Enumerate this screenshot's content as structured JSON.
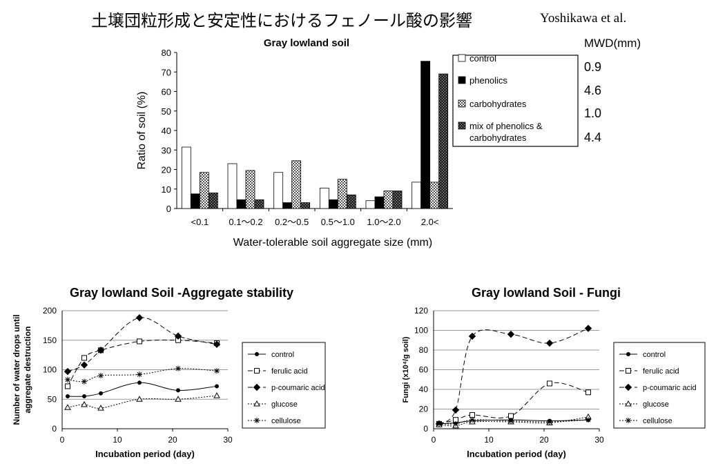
{
  "page": {
    "title": "土壌団粒形成と安定性におけるフェノール酸の影響",
    "author": "Yoshikawa et al."
  },
  "chart_data": [
    {
      "type": "bar",
      "title": "Gray lowland soil",
      "xlabel": "Water-tolerable  soil aggregate size (mm)",
      "ylabel": "Ratio of soil (%)",
      "ylim": [
        0,
        80
      ],
      "yticks": [
        0,
        10,
        20,
        30,
        40,
        50,
        60,
        70,
        80
      ],
      "categories": [
        "<0.1",
        "0.1～0.2",
        "0.2～0.5",
        "0.5～1.0",
        "1.0～2.0",
        "2.0<"
      ],
      "series": [
        {
          "name": "control",
          "values": [
            31.5,
            23,
            18.5,
            10.5,
            4,
            13.5
          ],
          "fill": "#ffffff"
        },
        {
          "name": "phenolics",
          "values": [
            7.5,
            4.5,
            3,
            4.5,
            6,
            75.5
          ],
          "fill": "#000000"
        },
        {
          "name": "carbohydrates",
          "values": [
            18.5,
            19.5,
            24.5,
            15,
            9,
            13.5
          ],
          "fill": "url(#pat-check)"
        },
        {
          "name": "mix of phenolics & carbohydrates",
          "values": [
            8,
            4.5,
            3,
            7,
            9,
            69
          ],
          "fill": "url(#pat-dark)"
        }
      ],
      "legend": "right",
      "mwd": {
        "header": "MWD(mm)",
        "values": [
          "0.9",
          "4.6",
          "1.0",
          "4.4"
        ]
      }
    },
    {
      "type": "line",
      "title": "Gray lowland Soil -Aggregate stability",
      "xlabel": "Incubation period (day)",
      "ylabel": "Number of water drops until aggregate destruction",
      "xlim": [
        0,
        30
      ],
      "ylim": [
        0,
        200
      ],
      "xticks": [
        0,
        10,
        20,
        30
      ],
      "yticks": [
        0,
        50,
        100,
        150,
        200
      ],
      "x": [
        1,
        4,
        7,
        14,
        21,
        28
      ],
      "series": [
        {
          "name": "control",
          "values": [
            55,
            55,
            60,
            78,
            65,
            72
          ],
          "marker": "dot",
          "dash": "solid"
        },
        {
          "name": "ferulic acid",
          "values": [
            72,
            120,
            133,
            148,
            150,
            145
          ],
          "marker": "square",
          "dash": "dash"
        },
        {
          "name": "p-coumaric acid",
          "values": [
            97,
            108,
            133,
            188,
            157,
            143
          ],
          "marker": "diamond",
          "dash": "dash"
        },
        {
          "name": "glucose",
          "values": [
            36,
            41,
            35,
            50,
            50,
            56
          ],
          "marker": "triangle",
          "dash": "dot"
        },
        {
          "name": "cellulose",
          "values": [
            83,
            80,
            90,
            92,
            102,
            98
          ],
          "marker": "star",
          "dash": "dot"
        }
      ],
      "legend": "right"
    },
    {
      "type": "line",
      "title": "Gray lowland Soil - Fungi",
      "xlabel": "Incubation period (day)",
      "ylabel": "Fungi (x10⁴/g soil)",
      "xlim": [
        0,
        30
      ],
      "ylim": [
        0,
        120
      ],
      "xticks": [
        0,
        10,
        20,
        30
      ],
      "yticks": [
        0,
        20,
        40,
        60,
        80,
        100,
        120
      ],
      "x": [
        1,
        4,
        7,
        14,
        21,
        28
      ],
      "series": [
        {
          "name": "control",
          "values": [
            5,
            6,
            8,
            9,
            8,
            9
          ],
          "marker": "dot",
          "dash": "solid"
        },
        {
          "name": "ferulic acid",
          "values": [
            5,
            9,
            14,
            13,
            46,
            37
          ],
          "marker": "square",
          "dash": "dash"
        },
        {
          "name": "p-coumaric acid",
          "values": [
            5,
            19,
            94,
            96,
            87,
            102
          ],
          "marker": "diamond",
          "dash": "dash"
        },
        {
          "name": "glucose",
          "values": [
            4,
            3,
            7,
            7,
            6,
            12
          ],
          "marker": "triangle",
          "dash": "dot"
        },
        {
          "name": "cellulose",
          "values": [
            5,
            5,
            9,
            8,
            7,
            9
          ],
          "marker": "star",
          "dash": "dot"
        }
      ],
      "legend": "right"
    }
  ]
}
